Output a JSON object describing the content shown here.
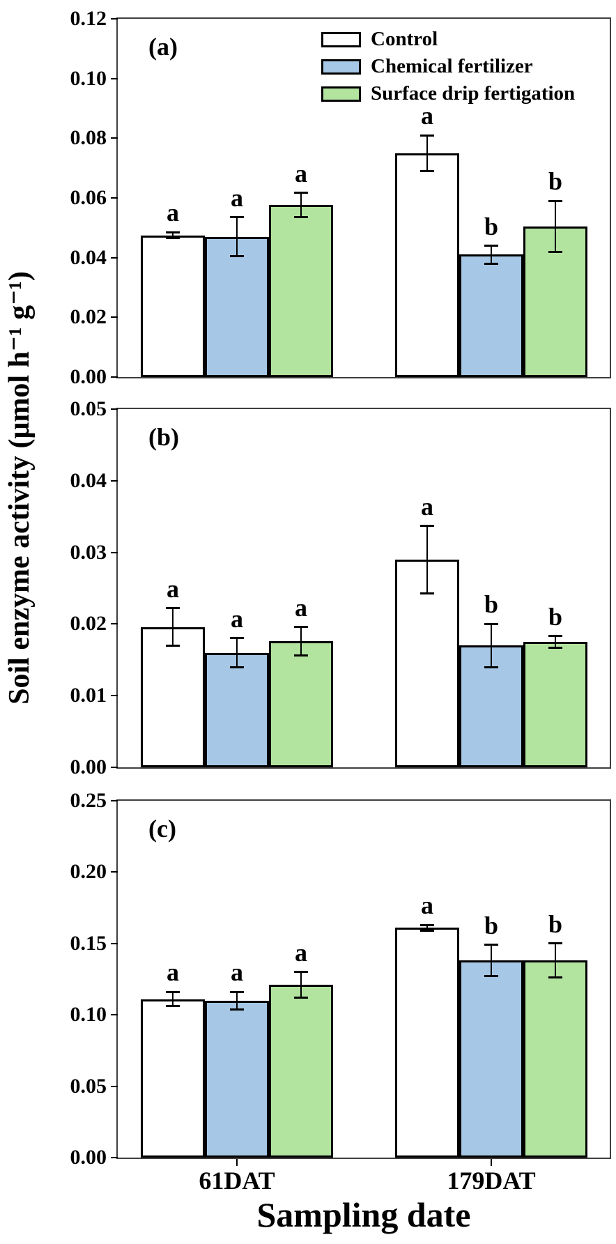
{
  "figure": {
    "y_axis_title": "Soil enzyme activity (μmol h⁻¹ g⁻¹)",
    "x_axis_title": "Sampling date"
  },
  "legend": {
    "position": "inside-top-right-of-panel-a",
    "items": [
      {
        "label": "Control",
        "color": "#ffffff"
      },
      {
        "label": "Chemical fertilizer",
        "color": "#a6c8e6"
      },
      {
        "label": "Surface drip fertigation",
        "color": "#b2e4a0"
      }
    ]
  },
  "chart_data": [
    {
      "type": "bar",
      "panel_label": "(a)",
      "categories": [
        "61DAT",
        "179DAT"
      ],
      "series": [
        {
          "name": "Control",
          "values": [
            0.0475,
            0.075
          ],
          "errors": [
            0.001,
            0.006
          ],
          "sig_letters": [
            "a",
            "a"
          ]
        },
        {
          "name": "Chemical fertilizer",
          "values": [
            0.047,
            0.041
          ],
          "errors": [
            0.0065,
            0.003
          ],
          "sig_letters": [
            "a",
            "b"
          ]
        },
        {
          "name": "Surface drip fertigation",
          "values": [
            0.0577,
            0.0505
          ],
          "errors": [
            0.004,
            0.0085
          ],
          "sig_letters": [
            "a",
            "b"
          ]
        }
      ],
      "ylim": [
        0,
        0.12
      ],
      "ytick_labels": [
        "0.00",
        "0.02",
        "0.04",
        "0.06",
        "0.08",
        "0.10",
        "0.12"
      ],
      "grid": false,
      "legend_position": "upper right"
    },
    {
      "type": "bar",
      "panel_label": "(b)",
      "categories": [
        "61DAT",
        "179DAT"
      ],
      "series": [
        {
          "name": "Control",
          "values": [
            0.0196,
            0.029
          ],
          "errors": [
            0.0026,
            0.0047
          ],
          "sig_letters": [
            "a",
            "a"
          ]
        },
        {
          "name": "Chemical fertilizer",
          "values": [
            0.016,
            0.017
          ],
          "errors": [
            0.002,
            0.003
          ],
          "sig_letters": [
            "a",
            "b"
          ]
        },
        {
          "name": "Surface drip fertigation",
          "values": [
            0.0176,
            0.0175
          ],
          "errors": [
            0.002,
            0.0008
          ],
          "sig_letters": [
            "a",
            "b"
          ]
        }
      ],
      "ylim": [
        0,
        0.05
      ],
      "ytick_labels": [
        "0.00",
        "0.01",
        "0.02",
        "0.03",
        "0.04",
        "0.05"
      ],
      "grid": false,
      "legend_position": "none"
    },
    {
      "type": "bar",
      "panel_label": "(c)",
      "categories": [
        "61DAT",
        "179DAT"
      ],
      "series": [
        {
          "name": "Control",
          "values": [
            0.111,
            0.161
          ],
          "errors": [
            0.005,
            0.002
          ],
          "sig_letters": [
            "a",
            "a"
          ]
        },
        {
          "name": "Chemical fertilizer",
          "values": [
            0.11,
            0.138
          ],
          "errors": [
            0.006,
            0.011
          ],
          "sig_letters": [
            "a",
            "b"
          ]
        },
        {
          "name": "Surface drip fertigation",
          "values": [
            0.121,
            0.138
          ],
          "errors": [
            0.009,
            0.012
          ],
          "sig_letters": [
            "a",
            "b"
          ]
        }
      ],
      "ylim": [
        0,
        0.25
      ],
      "ytick_labels": [
        "0.00",
        "0.05",
        "0.10",
        "0.15",
        "0.20",
        "0.25"
      ],
      "grid": false,
      "legend_position": "none"
    }
  ]
}
